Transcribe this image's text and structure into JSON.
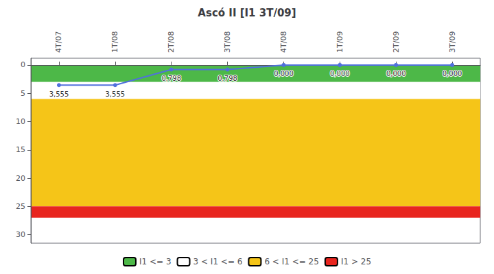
{
  "chart_data": {
    "type": "line",
    "title": "Ascó II [I1 3T/09]",
    "categories": [
      "4T/07",
      "1T/08",
      "2T/08",
      "3T/08",
      "4T/08",
      "1T/09",
      "2T/09",
      "3T/09"
    ],
    "values": [
      3.555,
      3.555,
      0.798,
      0.798,
      0.0,
      0.0,
      0.0,
      0.0
    ],
    "value_labels": [
      "3,555",
      "3,555",
      "0,798",
      "0,798",
      "0,000",
      "0,000",
      "0,000",
      "0,000"
    ],
    "data_labels": true,
    "ylim": [
      31.5,
      -1.2
    ],
    "yticks": [
      0,
      5,
      10,
      15,
      20,
      25,
      30
    ],
    "grid": false,
    "legend": "bottom",
    "zones": [
      {
        "name": "I1 <= 3",
        "from": 0,
        "to": 3,
        "color": "#4DB848"
      },
      {
        "name": "3 < I1 <= 6",
        "from": 3,
        "to": 6,
        "color": "#FFFFFF"
      },
      {
        "name": "6 < I1 <= 25",
        "from": 6,
        "to": 25,
        "color": "#F5C518"
      },
      {
        "name": "I1 > 25",
        "from": 25,
        "to": 27,
        "color": "#E8251F"
      }
    ]
  }
}
